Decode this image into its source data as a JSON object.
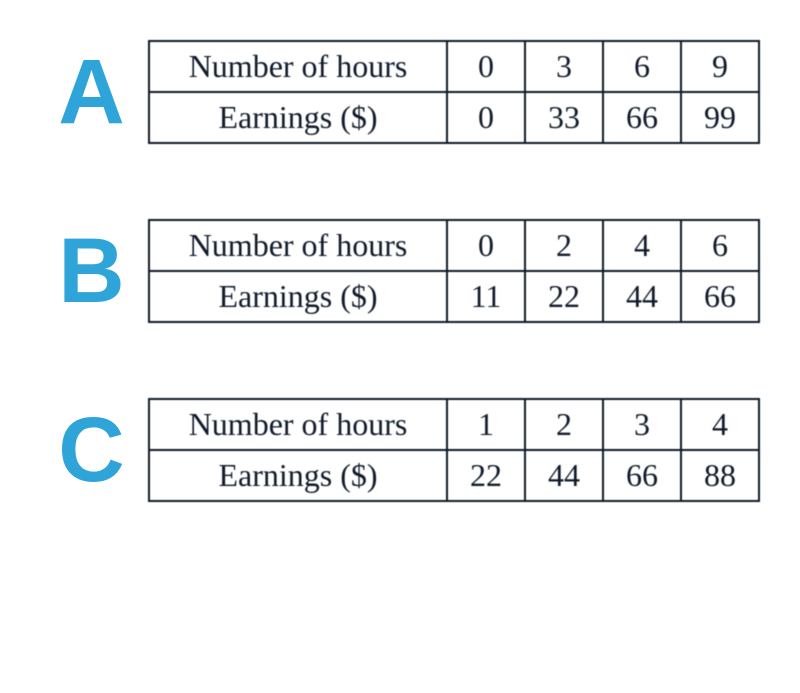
{
  "options": [
    {
      "letter": "A",
      "row1_label": "Number of hours",
      "row2_label": "Earnings ($)",
      "row1_values": [
        "0",
        "3",
        "6",
        "9"
      ],
      "row2_values": [
        "0",
        "33",
        "66",
        "99"
      ]
    },
    {
      "letter": "B",
      "row1_label": "Number of hours",
      "row2_label": "Earnings ($)",
      "row1_values": [
        "0",
        "2",
        "4",
        "6"
      ],
      "row2_values": [
        "11",
        "22",
        "44",
        "66"
      ]
    },
    {
      "letter": "C",
      "row1_label": "Number of hours",
      "row2_label": "Earnings ($)",
      "row1_values": [
        "1",
        "2",
        "3",
        "4"
      ],
      "row2_values": [
        "22",
        "44",
        "66",
        "88"
      ]
    }
  ],
  "colors": {
    "letter_color": "#2fa4d8",
    "border_color": "#101a2a",
    "text_color": "#101a2a",
    "background": "#ffffff"
  },
  "typography": {
    "letter_font": "Arial",
    "letter_weight": 800,
    "letter_size_pt": 70,
    "table_font": "Times New Roman",
    "table_size_pt": 24
  }
}
